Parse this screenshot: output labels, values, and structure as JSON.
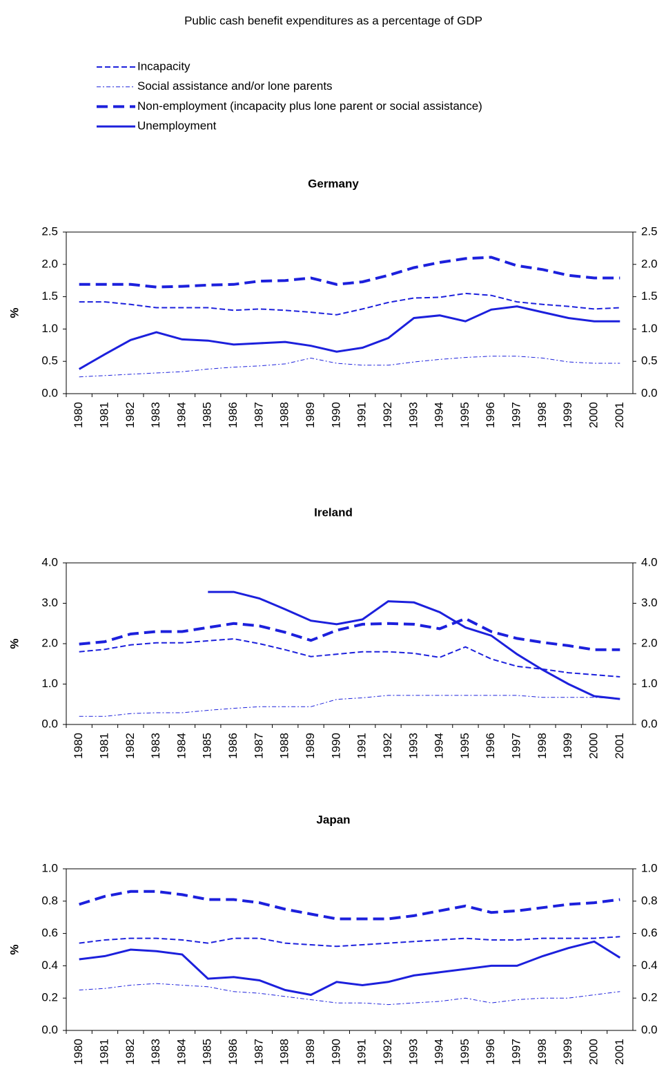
{
  "title": "Public cash benefit expenditures as a percentage of GDP",
  "legend": [
    {
      "name": "Incapacity",
      "color": "#1c20dc",
      "dash": "8,4",
      "width": 2
    },
    {
      "name": "Social assistance and/or lone parents",
      "color": "#1c20dc",
      "dash": "6,3,2,3",
      "width": 1
    },
    {
      "name": "Non-employment (incapacity plus lone parent or social assistance)",
      "color": "#1c20dc",
      "dash": "16,8",
      "width": 4
    },
    {
      "name": "Unemployment",
      "color": "#1c20dc",
      "dash": "none",
      "width": 3
    }
  ],
  "chart_data": [
    {
      "type": "line",
      "title": "Germany",
      "ylabel": "%",
      "categories": [
        "1980",
        "1981",
        "1982",
        "1983",
        "1984",
        "1985",
        "1986",
        "1987",
        "1988",
        "1989",
        "1990",
        "1991",
        "1992",
        "1993",
        "1994",
        "1995",
        "1996",
        "1997",
        "1998",
        "1999",
        "2000",
        "2001"
      ],
      "ylim": [
        0,
        2.5
      ],
      "yticks": [
        {
          "value": 0,
          "label": "0.0"
        },
        0.5,
        {
          "value": 1,
          "label": "1.0"
        },
        1.5,
        {
          "value": 2,
          "label": "2.0"
        },
        2.5
      ],
      "y2lim": [
        0,
        2.5
      ],
      "y2ticks": [
        {
          "value": 0,
          "label": "0.0"
        },
        0.5,
        {
          "value": 1,
          "label": "1.0"
        },
        1.5,
        {
          "value": 2,
          "label": "2.0"
        },
        2.5
      ],
      "series": [
        {
          "values": [
            1.42,
            1.42,
            1.38,
            1.33,
            1.33,
            1.33,
            1.29,
            1.31,
            1.29,
            1.26,
            1.22,
            1.31,
            1.41,
            1.48,
            1.49,
            1.55,
            1.52,
            1.42,
            1.38,
            1.35,
            1.31,
            1.33
          ]
        },
        {
          "values": [
            0.26,
            0.28,
            0.3,
            0.32,
            0.34,
            0.38,
            0.41,
            0.43,
            0.46,
            0.55,
            0.47,
            0.44,
            0.44,
            0.49,
            0.53,
            0.56,
            0.58,
            0.58,
            0.55,
            0.49,
            0.47,
            0.47
          ]
        },
        {
          "values": [
            1.69,
            1.69,
            1.69,
            1.65,
            1.66,
            1.68,
            1.69,
            1.74,
            1.75,
            1.79,
            1.69,
            1.73,
            1.83,
            1.95,
            2.03,
            2.09,
            2.11,
            1.98,
            1.92,
            1.83,
            1.79,
            1.79
          ]
        },
        {
          "values": [
            0.38,
            0.61,
            0.83,
            0.95,
            0.84,
            0.82,
            0.76,
            0.78,
            0.8,
            0.74,
            0.65,
            0.71,
            0.86,
            1.17,
            1.21,
            1.12,
            1.3,
            1.35,
            1.26,
            1.17,
            1.12,
            1.12
          ]
        }
      ]
    },
    {
      "type": "line",
      "title": "Ireland",
      "ylabel": "%",
      "categories": [
        "1980",
        "1981",
        "1982",
        "1983",
        "1984",
        "1985",
        "1986",
        "1987",
        "1988",
        "1989",
        "1990",
        "1991",
        "1992",
        "1993",
        "1994",
        "1995",
        "1996",
        "1997",
        "1998",
        "1999",
        "2000",
        "2001"
      ],
      "ylim": [
        0,
        4
      ],
      "yticks": [
        {
          "value": 0,
          "label": "0.0"
        },
        {
          "value": 1,
          "label": "1.0"
        },
        {
          "value": 2,
          "label": "2.0"
        },
        {
          "value": 3,
          "label": "3.0"
        },
        {
          "value": 4,
          "label": "4.0"
        }
      ],
      "y2lim": [
        0,
        4
      ],
      "y2ticks": [
        {
          "value": 0,
          "label": "0.0"
        },
        {
          "value": 1,
          "label": "1.0"
        },
        {
          "value": 2,
          "label": "2.0"
        },
        {
          "value": 3,
          "label": "3.0"
        },
        {
          "value": 4,
          "label": "4.0"
        }
      ],
      "series": [
        {
          "values": [
            1.8,
            1.86,
            1.97,
            2.02,
            2.02,
            2.07,
            2.12,
            2.0,
            1.85,
            1.68,
            1.74,
            1.8,
            1.8,
            1.76,
            1.66,
            1.92,
            1.62,
            1.44,
            1.37,
            1.28,
            1.23,
            1.18
          ]
        },
        {
          "values": [
            0.2,
            0.2,
            0.27,
            0.29,
            0.29,
            0.35,
            0.4,
            0.44,
            0.44,
            0.44,
            0.62,
            0.66,
            0.72,
            0.72,
            0.72,
            0.72,
            0.72,
            0.72,
            0.67,
            0.67,
            0.67,
            0.64
          ]
        },
        {
          "values": [
            1.99,
            2.05,
            2.24,
            2.3,
            2.3,
            2.4,
            2.5,
            2.44,
            2.28,
            2.08,
            2.33,
            2.48,
            2.5,
            2.48,
            2.37,
            2.62,
            2.3,
            2.13,
            2.03,
            1.95,
            1.85,
            1.85
          ]
        },
        {
          "values": [
            null,
            null,
            null,
            null,
            null,
            3.28,
            3.28,
            3.12,
            2.85,
            2.57,
            2.48,
            2.6,
            3.05,
            3.02,
            2.78,
            2.4,
            2.2,
            1.74,
            1.35,
            1.0,
            0.7,
            0.63
          ]
        }
      ]
    },
    {
      "type": "line",
      "title": "Japan",
      "ylabel": "%",
      "categories": [
        "1980",
        "1981",
        "1982",
        "1983",
        "1984",
        "1985",
        "1986",
        "1987",
        "1988",
        "1989",
        "1990",
        "1991",
        "1992",
        "1993",
        "1994",
        "1995",
        "1996",
        "1997",
        "1998",
        "1999",
        "2000",
        "2001"
      ],
      "ylim": [
        0,
        1
      ],
      "yticks": [
        {
          "value": 0,
          "label": "0.0"
        },
        0.2,
        0.4,
        0.6,
        0.8,
        {
          "value": 1,
          "label": "1.0"
        }
      ],
      "y2lim": [
        0,
        1
      ],
      "y2ticks": [
        {
          "value": 0,
          "label": "0.0"
        },
        0.2,
        0.4,
        0.6,
        0.8,
        {
          "value": 1,
          "label": "1.0"
        }
      ],
      "series": [
        {
          "values": [
            0.54,
            0.56,
            0.57,
            0.57,
            0.56,
            0.54,
            0.57,
            0.57,
            0.54,
            0.53,
            0.52,
            0.53,
            0.54,
            0.55,
            0.56,
            0.57,
            0.56,
            0.56,
            0.57,
            0.57,
            0.57,
            0.58
          ]
        },
        {
          "values": [
            0.25,
            0.26,
            0.28,
            0.29,
            0.28,
            0.27,
            0.24,
            0.23,
            0.21,
            0.19,
            0.17,
            0.17,
            0.16,
            0.17,
            0.18,
            0.2,
            0.17,
            0.19,
            0.2,
            0.2,
            0.22,
            0.24
          ]
        },
        {
          "values": [
            0.78,
            0.83,
            0.86,
            0.86,
            0.84,
            0.81,
            0.81,
            0.79,
            0.75,
            0.72,
            0.69,
            0.69,
            0.69,
            0.71,
            0.74,
            0.77,
            0.73,
            0.74,
            0.76,
            0.78,
            0.79,
            0.81
          ]
        },
        {
          "values": [
            0.44,
            0.46,
            0.5,
            0.49,
            0.47,
            0.32,
            0.33,
            0.31,
            0.25,
            0.22,
            0.3,
            0.28,
            0.3,
            0.34,
            0.36,
            0.38,
            0.4,
            0.4,
            0.46,
            0.51,
            0.55,
            0.45
          ]
        }
      ]
    }
  ]
}
